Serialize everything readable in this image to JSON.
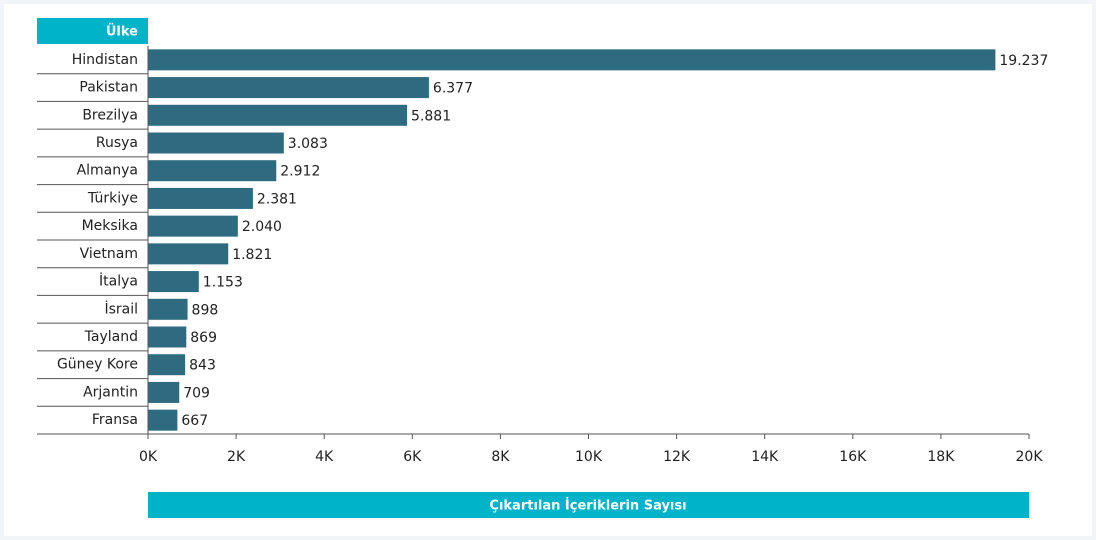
{
  "chart_data": {
    "type": "bar",
    "orientation": "horizontal",
    "y_label": "Ülke",
    "x_label": "Çıkartılan İçeriklerin Sayısı",
    "categories": [
      "Hindistan",
      "Pakistan",
      "Brezilya",
      "Rusya",
      "Almanya",
      "Türkiye",
      "Meksika",
      "Vietnam",
      "İtalya",
      "İsrail",
      "Tayland",
      "Güney Kore",
      "Arjantin",
      "Fransa"
    ],
    "values": [
      19237,
      6377,
      5881,
      3083,
      2912,
      2381,
      2040,
      1821,
      1153,
      898,
      869,
      843,
      709,
      667
    ],
    "value_labels": [
      "19.237",
      "6.377",
      "5.881",
      "3.083",
      "2.912",
      "2.381",
      "2.040",
      "1.821",
      "1.153",
      "898",
      "869",
      "843",
      "709",
      "667"
    ],
    "color": "#2e6b80",
    "accent_color": "#00b3c8",
    "xlim": [
      0,
      20000
    ],
    "xticks": [
      {
        "value": 0,
        "label": "0K"
      },
      {
        "value": 2000,
        "label": "2K"
      },
      {
        "value": 4000,
        "label": "4K"
      },
      {
        "value": 6000,
        "label": "6K"
      },
      {
        "value": 8000,
        "label": "8K"
      },
      {
        "value": 10000,
        "label": "10K"
      },
      {
        "value": 12000,
        "label": "12K"
      },
      {
        "value": 14000,
        "label": "14K"
      },
      {
        "value": 16000,
        "label": "16K"
      },
      {
        "value": 18000,
        "label": "18K"
      },
      {
        "value": 20000,
        "label": "20K"
      }
    ]
  }
}
